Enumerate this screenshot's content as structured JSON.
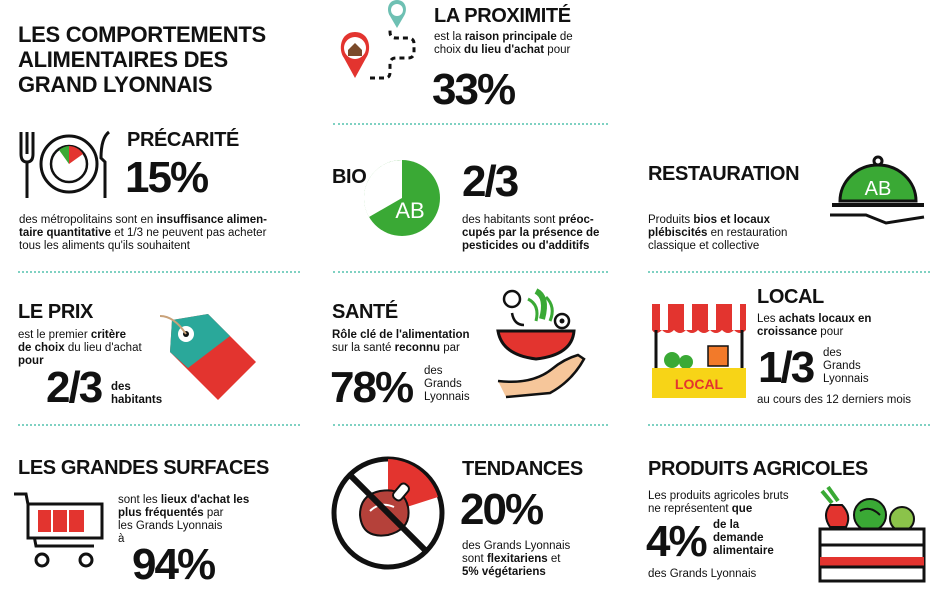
{
  "title": {
    "line1": "LES COMPORTEMENTS",
    "line2": "ALIMENTAIRES DES",
    "line3": "GRAND LYONNAIS"
  },
  "proximite": {
    "heading": "LA PROXIMITÉ",
    "t1": "est la ",
    "t1b": "raison principale",
    "t2": " de",
    "t3": "choix ",
    "t3b": "du lieu d'achat",
    "t4": " pour",
    "value": "33%"
  },
  "precarite": {
    "heading": "PRÉCARITÉ",
    "value": "15%",
    "t1": "des métropolitains sont en ",
    "t1b": "insuffisance alimen-",
    "t2b": "taire quantitative",
    "t2": " et 1/3 ne peuvent pas acheter",
    "t3": "tous les aliments qu'ils souhaitent"
  },
  "bio": {
    "heading": "BIO",
    "value": "2/3",
    "badge": "AB",
    "t1": "des habitants sont ",
    "t1b": "préoc-",
    "t2b": "cupés par la présence de",
    "t3b": "pesticides ou d'additifs"
  },
  "restauration": {
    "heading": "RESTAURATION",
    "badge": "AB",
    "t1a": "Produits ",
    "t1b": "bios et locaux",
    "t2b": "plébiscités",
    "t2": " en restauration",
    "t3": "classique et collective"
  },
  "prix": {
    "heading": "LE PRIX",
    "t1": "est le premier ",
    "t1b": "critère",
    "t2b": "de choix",
    "t2": " du lieu d'achat",
    "t3": "pour",
    "value": "2/3",
    "s1": "des",
    "s2": "habitants"
  },
  "sante": {
    "heading": "SANTÉ",
    "t1b": "Rôle clé de l'alimentation",
    "t2": "sur la santé ",
    "t2b": "reconnu",
    "t2c": " par",
    "value": "78%",
    "s1": "des",
    "s2": "Grands",
    "s3": "Lyonnais"
  },
  "local": {
    "heading": "LOCAL",
    "t1a": "Les ",
    "t1b": "achats locaux en",
    "t2b": "croissance",
    "t2": " pour",
    "value": "1/3",
    "s1": "des",
    "s2": "Grands",
    "s3": "Lyonnais",
    "t3": "au cours des 12 derniers mois",
    "stall_label": "LOCAL"
  },
  "grandes_surfaces": {
    "heading": "LES GRANDES SURFACES",
    "t1": "sont les ",
    "t1b": "lieux d'achat les",
    "t2b": "plus fréquentés",
    "t2": " par",
    "t3": "les Grands Lyonnais",
    "t4": "à",
    "value": "94%"
  },
  "tendances": {
    "heading": "TENDANCES",
    "value": "20%",
    "t1": "des Grands Lyonnais",
    "t2": "sont ",
    "t2b": "flexitariens",
    "t2c": " et",
    "t3b": "5% végétariens"
  },
  "produits_agricoles": {
    "heading": "PRODUITS AGRICOLES",
    "t1": "Les produits agricoles bruts",
    "t2": "ne représentent ",
    "t2b": "que",
    "value": "4%",
    "s1b": "de la",
    "s2b": "demande",
    "s3b": "alimentaire",
    "t3": "des Grands Lyonnais"
  },
  "colors": {
    "green": "#3aa935",
    "red": "#e3342f",
    "teal": "#2aa89a",
    "yellow": "#f7d417",
    "dots": "#7fd1c2"
  }
}
